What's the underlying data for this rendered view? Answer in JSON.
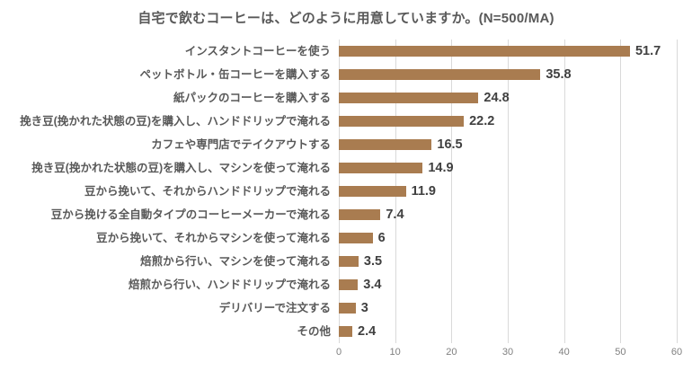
{
  "colors": {
    "bar": "#A97C50",
    "grid": "#D9D9D9",
    "title": "#595959",
    "label": "#595959",
    "value": "#404040",
    "tick": "#808080"
  },
  "chart_data": {
    "type": "bar",
    "orientation": "horizontal",
    "title": "自宅で飲むコーヒーは、どのように用意していますか。(N=500/MA)",
    "categories": [
      "インスタントコーヒーを使う",
      "ペットボトル・缶コーヒーを購入する",
      "紙パックのコーヒーを購入する",
      "挽き豆(挽かれた状態の豆)を購入し、ハンドドリップで淹れる",
      "カフェや専門店でテイクアウトする",
      "挽き豆(挽かれた状態の豆)を購入し、マシンを使って淹れる",
      "豆から挽いて、それからハンドドリップで淹れる",
      "豆から挽ける全自動タイプのコーヒーメーカーで淹れる",
      "豆から挽いて、それからマシンを使って淹れる",
      "焙煎から行い、マシンを使って淹れる",
      "焙煎から行い、ハンドドリップで淹れる",
      "デリバリーで注文する",
      "その他"
    ],
    "values": [
      51.7,
      35.8,
      24.8,
      22.2,
      16.5,
      14.9,
      11.9,
      7.4,
      6,
      3.5,
      3.4,
      3,
      2.4
    ],
    "xlabel": "",
    "ylabel": "",
    "xlim": [
      0,
      60
    ],
    "xticks": [
      0,
      10,
      20,
      30,
      40,
      50,
      60
    ],
    "grid": true,
    "legend": false,
    "value_labels": true
  }
}
